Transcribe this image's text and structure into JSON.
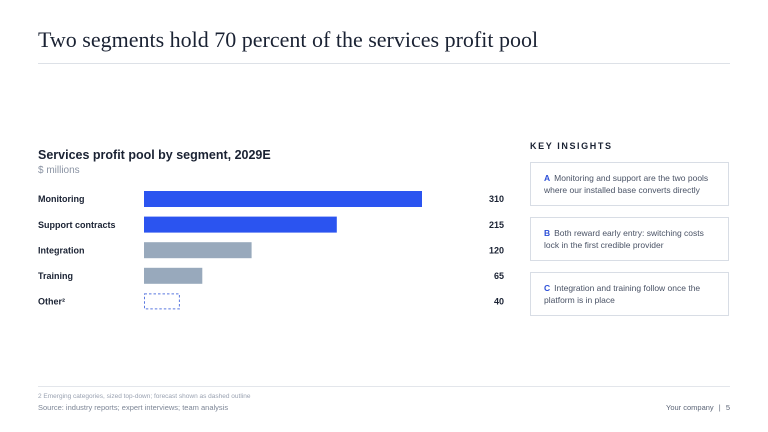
{
  "slide": {
    "title": "Two segments hold 70 percent of the services profit pool"
  },
  "chart_data": {
    "type": "bar",
    "orientation": "horizontal",
    "title": "Services profit pool by segment, 2029E",
    "unit_label": "$ millions",
    "categories": [
      "Monitoring",
      "Support contracts",
      "Integration",
      "Training",
      "Other²"
    ],
    "values": [
      310,
      215,
      120,
      65,
      40
    ],
    "data_labels": [
      "310",
      "215",
      "120",
      "65",
      "40"
    ],
    "bar_styles": [
      "highlight",
      "highlight",
      "muted",
      "muted",
      "forecast-dashed"
    ],
    "colors": {
      "highlight": "#2b54f0",
      "muted": "#98a9bc",
      "forecast": "#5b79e0"
    },
    "xlim": [
      0,
      310
    ],
    "grid": false,
    "legend": "none"
  },
  "insights": {
    "heading": "KEY INSIGHTS",
    "items": [
      {
        "letter": "A",
        "text": "Monitoring and support are the two pools where our installed base converts directly"
      },
      {
        "letter": "B",
        "text": "Both reward early entry: switching costs lock in the first credible provider"
      },
      {
        "letter": "C",
        "text": "Integration and training follow once the platform is in place"
      }
    ]
  },
  "footer": {
    "footnote": "2 Emerging categories, sized top-down; forecast shown as dashed outline",
    "source": "Source: industry reports; expert interviews; team analysis",
    "company": "Your company",
    "separator": "|",
    "page": "5"
  }
}
